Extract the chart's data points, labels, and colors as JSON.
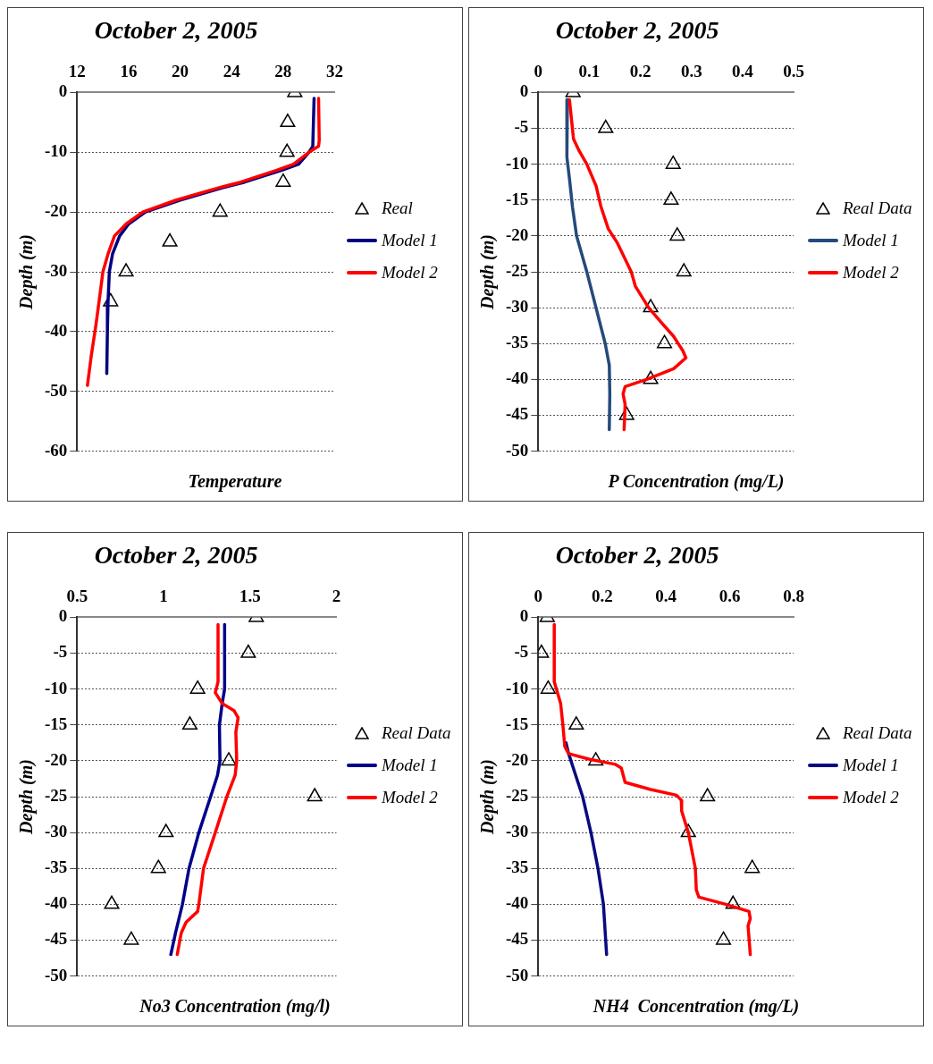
{
  "chart_data": [
    {
      "type": "line",
      "title": "October 2, 2005",
      "xlabel": "Temperature",
      "ylabel": "Depth (m)",
      "xlim": [
        12,
        32
      ],
      "xticks": [
        12,
        16,
        20,
        24,
        28,
        32
      ],
      "ylim": [
        -60,
        0
      ],
      "yticks": [
        0,
        -10,
        -20,
        -30,
        -40,
        -50,
        -60
      ],
      "grid": "y",
      "legend": "right",
      "series": [
        {
          "name": "Real",
          "type": "scatter",
          "marker": "triangle",
          "color": "#000000",
          "x": [
            28.9,
            28.35,
            28.3,
            28.0,
            23.1,
            19.2,
            15.8,
            14.6
          ],
          "values": [
            0,
            -5,
            -10,
            -15,
            -20,
            -25,
            -30,
            -35
          ]
        },
        {
          "name": "Model 1",
          "type": "line",
          "marker": "none",
          "color": "#000080",
          "x": [
            30.4,
            30.3,
            30.0,
            29.2,
            27.9,
            25.0,
            23.2,
            20.0,
            17.3,
            16.0,
            15.3,
            14.75,
            14.5,
            14.4,
            14.35,
            14.3
          ],
          "values": [
            -1,
            -9,
            -10,
            -12,
            -13,
            -15,
            -16,
            -18,
            -20,
            -22,
            -24,
            -27,
            -30,
            -35,
            -40,
            -47
          ]
        },
        {
          "name": "Model 2",
          "type": "line",
          "marker": "none",
          "color": "#ff0000",
          "x": [
            30.75,
            30.8,
            30.75,
            30.0,
            28.8,
            27.5,
            24.7,
            22.9,
            19.7,
            17.1,
            15.8,
            14.9,
            14.4,
            14.0,
            13.7,
            13.45,
            13.1,
            12.8
          ],
          "values": [
            -1,
            -8,
            -9,
            -10,
            -12,
            -13,
            -15,
            -16,
            -18,
            -20,
            -22,
            -24,
            -27,
            -30,
            -35,
            -39,
            -44,
            -49
          ]
        }
      ]
    },
    {
      "type": "line",
      "title": "October 2, 2005",
      "xlabel": "P Concentration (mg/L)",
      "ylabel": "Depth (m)",
      "xlim": [
        0,
        0.5
      ],
      "xticks": [
        0,
        0.1,
        0.2,
        0.3,
        0.4,
        0.5
      ],
      "ylim": [
        -50,
        0
      ],
      "yticks": [
        0,
        -5,
        -10,
        -15,
        -20,
        -25,
        -30,
        -35,
        -40,
        -45,
        -50
      ],
      "grid": "y",
      "legend": "right",
      "series": [
        {
          "name": "Real Data",
          "type": "scatter",
          "marker": "triangle",
          "color": "#000000",
          "x": [
            0.068,
            0.132,
            0.264,
            0.26,
            0.272,
            0.285,
            0.22,
            0.247,
            0.22,
            0.173
          ],
          "values": [
            0,
            -5,
            -10,
            -15,
            -20,
            -25,
            -30,
            -35,
            -40,
            -45
          ]
        },
        {
          "name": "Model 1",
          "type": "line",
          "marker": "none",
          "color": "#254a7c",
          "x": [
            0.057,
            0.056,
            0.061,
            0.067,
            0.075,
            0.095,
            0.113,
            0.131,
            0.139,
            0.14,
            0.139
          ],
          "values": [
            -1,
            -9,
            -12,
            -16,
            -20,
            -25,
            -30,
            -35,
            -38,
            -42,
            -47
          ]
        },
        {
          "name": "Model 2",
          "type": "line",
          "marker": "none",
          "color": "#ff0000",
          "x": [
            0.061,
            0.069,
            0.079,
            0.095,
            0.113,
            0.123,
            0.137,
            0.155,
            0.182,
            0.19,
            0.216,
            0.24,
            0.265,
            0.283,
            0.289,
            0.265,
            0.212,
            0.17,
            0.166,
            0.17,
            0.168
          ],
          "values": [
            -1,
            -6.5,
            -8,
            -10,
            -13,
            -16,
            -19,
            -21,
            -25,
            -27,
            -30,
            -32,
            -34,
            -36,
            -37,
            -38.5,
            -40,
            -41,
            -42,
            -43.5,
            -47
          ]
        }
      ]
    },
    {
      "type": "line",
      "title": "October 2, 2005",
      "xlabel": "No3 Concentration (mg/l)",
      "ylabel": "Depth (m)",
      "xlim": [
        0.5,
        2
      ],
      "xticks": [
        0.5,
        1,
        1.5,
        2
      ],
      "ylim": [
        -50,
        0
      ],
      "yticks": [
        0,
        -5,
        -10,
        -15,
        -20,
        -25,
        -30,
        -35,
        -40,
        -45,
        -50
      ],
      "grid": "y",
      "legend": "right",
      "series": [
        {
          "name": "Real Data",
          "type": "scatter",
          "marker": "triangle",
          "color": "#000000",
          "x": [
            1.536,
            1.49,
            1.197,
            1.152,
            1.377,
            1.874,
            1.014,
            0.97,
            0.7,
            0.813
          ],
          "values": [
            0,
            -5,
            -10,
            -15,
            -20,
            -25,
            -30,
            -35,
            -40,
            -45
          ]
        },
        {
          "name": "Model 1",
          "type": "line",
          "marker": "none",
          "color": "#00008b",
          "x": [
            1.353,
            1.353,
            1.339,
            1.323,
            1.326,
            1.312,
            1.272,
            1.204,
            1.147,
            1.109,
            1.069,
            1.042
          ],
          "values": [
            -1,
            -10,
            -12,
            -15,
            -20,
            -22,
            -25,
            -30,
            -35,
            -40,
            -44,
            -47
          ]
        },
        {
          "name": "Model 2",
          "type": "line",
          "marker": "none",
          "color": "#ff0000",
          "x": [
            1.315,
            1.315,
            1.299,
            1.339,
            1.407,
            1.431,
            1.418,
            1.423,
            1.414,
            1.366,
            1.299,
            1.231,
            1.204,
            1.197,
            1.13,
            1.102,
            1.079
          ],
          "values": [
            -1,
            -9,
            -10.5,
            -12,
            -13,
            -14,
            -16,
            -20,
            -22,
            -25,
            -30,
            -35,
            -40,
            -41,
            -42.5,
            -44,
            -47
          ]
        }
      ]
    },
    {
      "type": "line",
      "title": "October 2, 2005",
      "xlabel": "NH4  Concentration (mg/L)",
      "ylabel": "Depth (m)",
      "xlim": [
        0,
        0.8
      ],
      "xticks": [
        0,
        0.2,
        0.4,
        0.6,
        0.8
      ],
      "ylim": [
        -50,
        0
      ],
      "yticks": [
        0,
        -5,
        -10,
        -15,
        -20,
        -25,
        -30,
        -35,
        -40,
        -45,
        -50
      ],
      "grid": "y",
      "legend": "right",
      "series": [
        {
          "name": "Real Data",
          "type": "scatter",
          "marker": "triangle",
          "color": "#000000",
          "x": [
            0.028,
            0.01,
            0.031,
            0.119,
            0.18,
            0.53,
            0.47,
            0.67,
            0.61,
            0.58
          ],
          "values": [
            0,
            -5,
            -10,
            -15,
            -20,
            -25,
            -30,
            -35,
            -40,
            -45
          ]
        },
        {
          "name": "Model 1",
          "type": "line",
          "marker": "none",
          "color": "#0a0a80",
          "x": [
            0.087,
            0.095,
            0.117,
            0.139,
            0.165,
            0.187,
            0.204,
            0.214
          ],
          "values": [
            -17.5,
            -19,
            -22,
            -25,
            -30,
            -35,
            -40,
            -47
          ]
        },
        {
          "name": "Model 2",
          "type": "line",
          "marker": "none",
          "color": "#ff0000",
          "x": [
            0.05,
            0.05,
            0.07,
            0.077,
            0.083,
            0.095,
            0.161,
            0.242,
            0.26,
            0.266,
            0.272,
            0.352,
            0.433,
            0.448,
            0.449,
            0.47,
            0.492,
            0.495,
            0.503,
            0.587,
            0.66,
            0.664,
            0.657,
            0.664
          ],
          "values": [
            -1,
            -9,
            -12,
            -15,
            -18,
            -19,
            -19.8,
            -20.5,
            -21,
            -22,
            -23,
            -24,
            -24.8,
            -25.5,
            -27,
            -30,
            -35,
            -38,
            -39,
            -40,
            -41,
            -42,
            -43,
            -47
          ]
        }
      ]
    }
  ]
}
